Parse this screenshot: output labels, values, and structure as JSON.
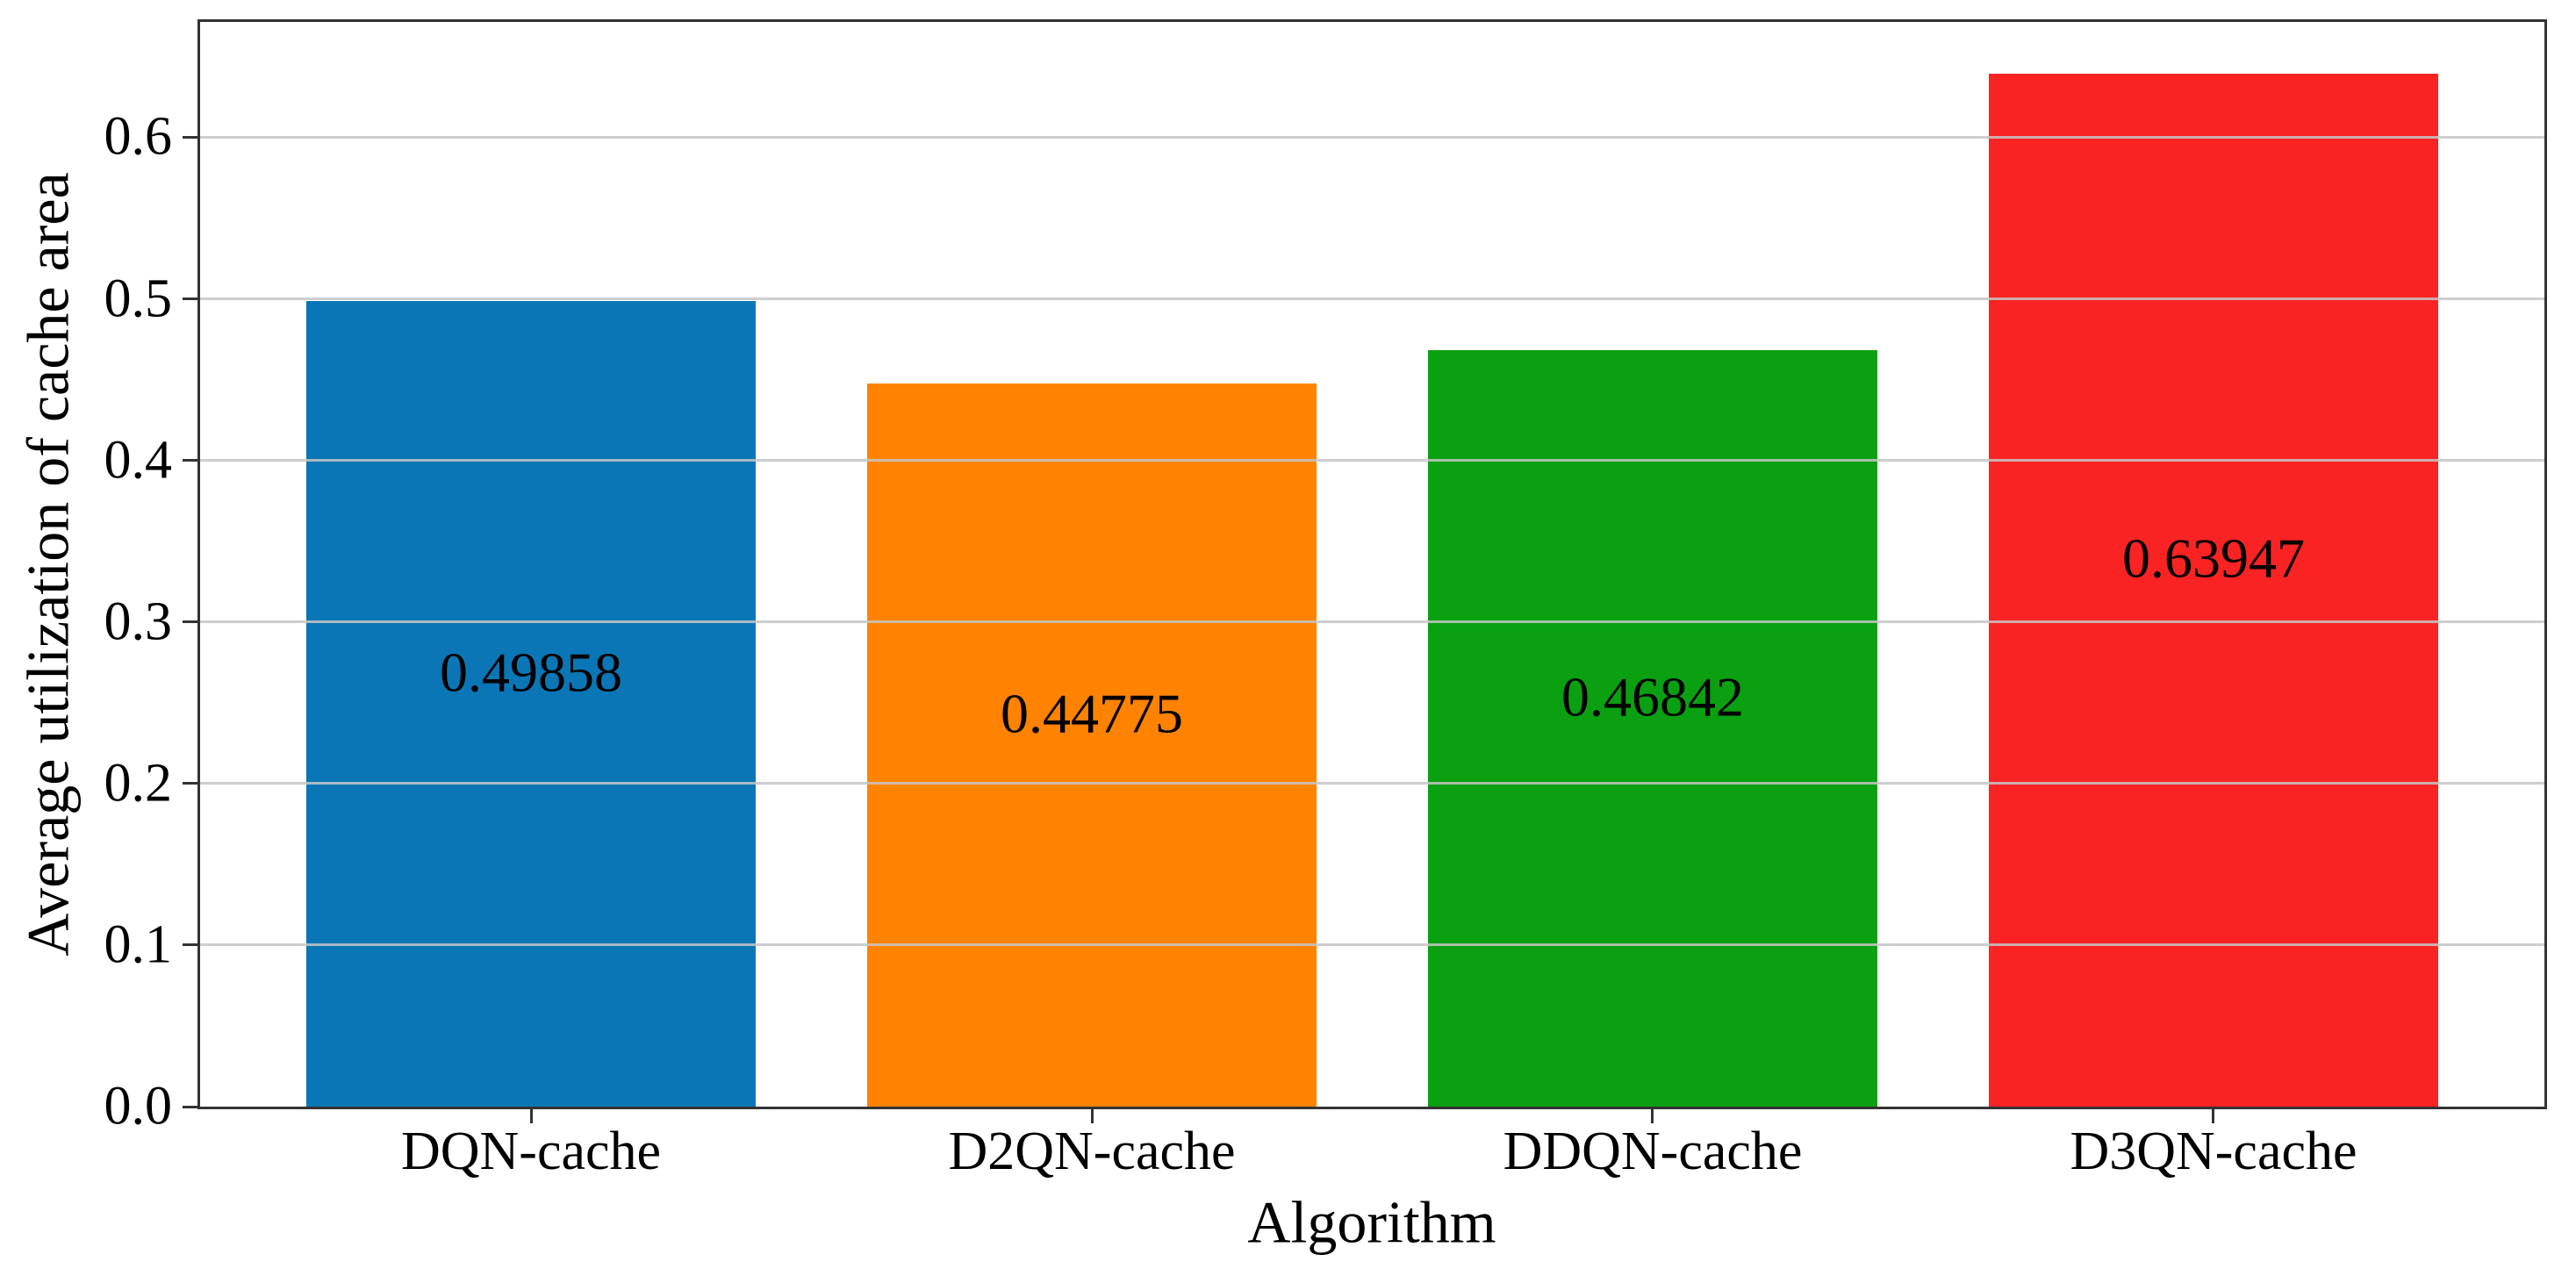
{
  "chart_data": {
    "type": "bar",
    "title": "",
    "categories": [
      "DQN-cache",
      "D2QN-cache",
      "DDQN-cache",
      "D3QN-cache"
    ],
    "values": [
      0.49858,
      0.44775,
      0.46842,
      0.63947
    ],
    "bar_labels": [
      "0.49858",
      "0.44775",
      "0.46842",
      "0.63947"
    ],
    "bar_colors": [
      "#0b76b6",
      "#ff8200",
      "#0aa011",
      "#f92323"
    ],
    "xlabel": "Algorithm",
    "ylabel": "Average utilization of cache area",
    "yticks": [
      0,
      0.1,
      0.2,
      0.3,
      0.4,
      0.5,
      0.6
    ],
    "ytick_labels": [
      "0.0",
      "0.1",
      "0.2",
      "0.3",
      "0.4",
      "0.5",
      "0.6"
    ],
    "ylim": [
      0,
      0.6714
    ],
    "xlim": [
      -0.59,
      3.59
    ],
    "bar_width": 0.8,
    "grid": "horizontal-y-over-bars",
    "grid_color": "#c6c6c6",
    "spine_color": "#333333",
    "text_color": "#000000",
    "background_color": "#ffffff",
    "legend": null
  }
}
